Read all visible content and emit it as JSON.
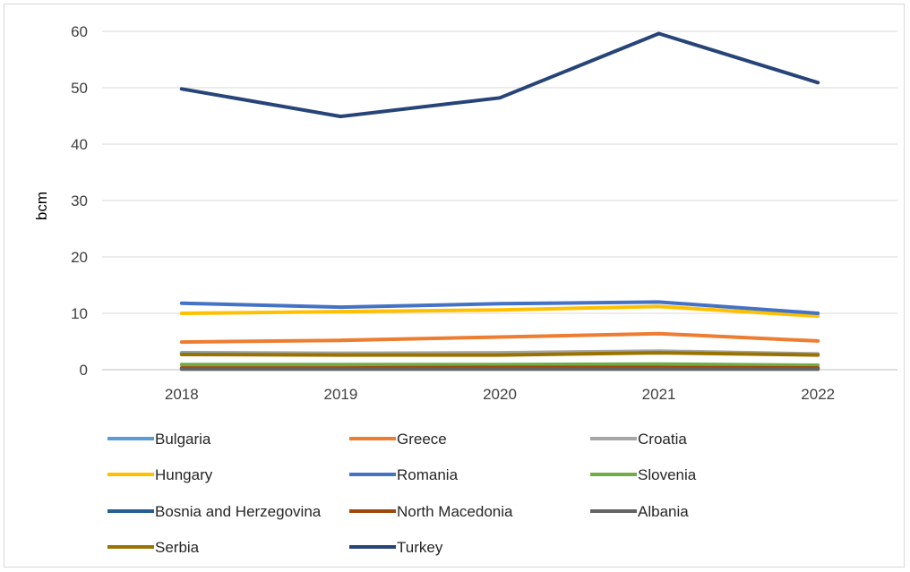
{
  "chart_data": {
    "type": "line",
    "title": "",
    "xlabel": "",
    "ylabel": "bcm",
    "ylim": [
      0,
      60
    ],
    "yticks": [
      0,
      10,
      20,
      30,
      40,
      50,
      60
    ],
    "grid": "horizontal",
    "legend": "bottom",
    "categories": [
      "2018",
      "2019",
      "2020",
      "2021",
      "2022"
    ],
    "series": [
      {
        "name": "Bulgaria",
        "color": "#5b9bd5",
        "values": [
          3.0,
          2.9,
          2.9,
          3.2,
          2.7
        ]
      },
      {
        "name": "Greece",
        "color": "#ed7d31",
        "values": [
          4.9,
          5.2,
          5.8,
          6.4,
          5.1
        ]
      },
      {
        "name": "Croatia",
        "color": "#a5a5a5",
        "values": [
          2.8,
          2.9,
          3.0,
          3.3,
          2.8
        ]
      },
      {
        "name": "Hungary",
        "color": "#ffc000",
        "values": [
          10.0,
          10.3,
          10.6,
          11.2,
          9.5
        ]
      },
      {
        "name": "Romania",
        "color": "#4472c4",
        "values": [
          11.8,
          11.1,
          11.7,
          12.0,
          10.0
        ]
      },
      {
        "name": "Slovenia",
        "color": "#70ad47",
        "values": [
          0.9,
          0.9,
          0.9,
          1.0,
          0.8
        ]
      },
      {
        "name": "Bosnia and Herzegovina",
        "color": "#255e91",
        "values": [
          0.2,
          0.2,
          0.2,
          0.2,
          0.2
        ]
      },
      {
        "name": "North Macedonia",
        "color": "#9e480e",
        "values": [
          0.3,
          0.3,
          0.4,
          0.4,
          0.3
        ]
      },
      {
        "name": "Albania",
        "color": "#636363",
        "values": [
          0.1,
          0.1,
          0.1,
          0.1,
          0.1
        ]
      },
      {
        "name": "Serbia",
        "color": "#997300",
        "values": [
          2.7,
          2.6,
          2.6,
          3.0,
          2.6
        ]
      },
      {
        "name": "Turkey",
        "color": "#264478",
        "values": [
          49.8,
          44.9,
          48.2,
          59.6,
          50.9
        ]
      }
    ]
  }
}
